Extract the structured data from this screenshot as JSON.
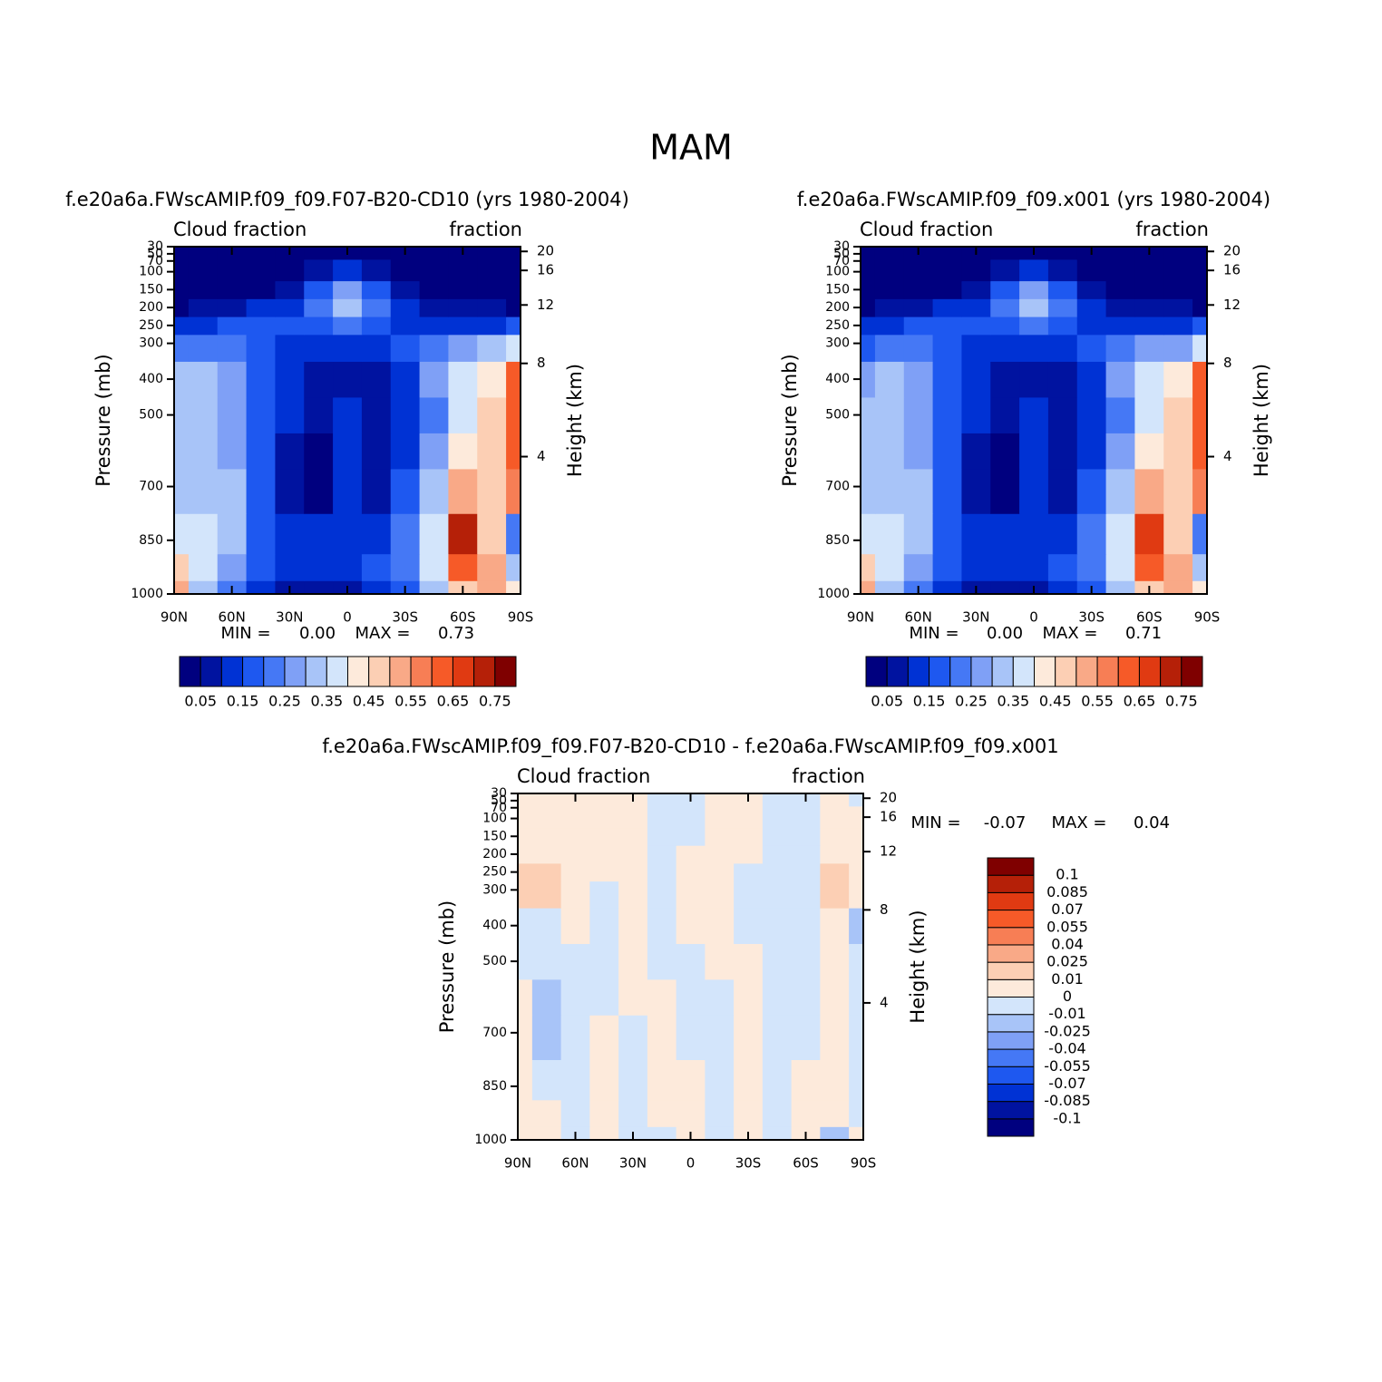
{
  "title": "MAM",
  "chart_data": [
    {
      "type": "contour",
      "title": "f.e20a6a.FWscAMIP.f09_f09.F07-B20-CD10 (yrs 1980-2004)",
      "left_label": "Cloud fraction",
      "right_label": "fraction",
      "ylabel": "Pressure (mb)",
      "y2label": "Height (km)",
      "x": [
        90,
        75,
        60,
        45,
        30,
        15,
        0,
        -15,
        -30,
        -45,
        -60,
        -75,
        -90
      ],
      "y": [
        1000,
        925,
        850,
        700,
        600,
        500,
        400,
        300,
        250,
        200,
        150,
        100,
        30
      ],
      "z": [
        [
          0.5,
          0.3,
          0.2,
          0.12,
          0.08,
          0.06,
          0.08,
          0.1,
          0.15,
          0.3,
          0.45,
          0.5,
          0.4
        ],
        [
          0.45,
          0.35,
          0.25,
          0.15,
          0.1,
          0.1,
          0.12,
          0.15,
          0.2,
          0.35,
          0.6,
          0.5,
          0.3
        ],
        [
          0.38,
          0.36,
          0.3,
          0.18,
          0.1,
          0.1,
          0.13,
          0.14,
          0.2,
          0.35,
          0.7,
          0.45,
          0.2
        ],
        [
          0.3,
          0.34,
          0.3,
          0.18,
          0.08,
          0.03,
          0.12,
          0.08,
          0.15,
          0.3,
          0.5,
          0.45,
          0.55
        ],
        [
          0.3,
          0.34,
          0.28,
          0.18,
          0.08,
          0.04,
          0.1,
          0.07,
          0.12,
          0.25,
          0.42,
          0.45,
          0.6
        ],
        [
          0.3,
          0.34,
          0.28,
          0.18,
          0.1,
          0.07,
          0.1,
          0.07,
          0.12,
          0.24,
          0.38,
          0.45,
          0.6
        ],
        [
          0.3,
          0.33,
          0.27,
          0.18,
          0.12,
          0.08,
          0.09,
          0.08,
          0.14,
          0.25,
          0.35,
          0.43,
          0.6
        ],
        [
          0.2,
          0.22,
          0.22,
          0.18,
          0.14,
          0.13,
          0.14,
          0.13,
          0.16,
          0.2,
          0.25,
          0.3,
          0.35
        ],
        [
          0.13,
          0.13,
          0.15,
          0.15,
          0.15,
          0.17,
          0.2,
          0.17,
          0.14,
          0.13,
          0.13,
          0.14,
          0.15
        ],
        [
          0.04,
          0.05,
          0.07,
          0.1,
          0.12,
          0.22,
          0.32,
          0.22,
          0.1,
          0.07,
          0.05,
          0.05,
          0.04
        ],
        [
          0.02,
          0.02,
          0.03,
          0.04,
          0.08,
          0.18,
          0.25,
          0.18,
          0.07,
          0.03,
          0.02,
          0.02,
          0.02
        ],
        [
          0.01,
          0.01,
          0.01,
          0.02,
          0.03,
          0.07,
          0.1,
          0.06,
          0.02,
          0.01,
          0.01,
          0.01,
          0.01
        ],
        [
          0.01,
          0.01,
          0.01,
          0.01,
          0.01,
          0.01,
          0.01,
          0.01,
          0.01,
          0.01,
          0.01,
          0.01,
          0.01
        ]
      ],
      "xlim": [
        90,
        -90
      ],
      "xticks": [
        {
          "value": 90,
          "label": "90N"
        },
        {
          "value": 60,
          "label": "60N"
        },
        {
          "value": 30,
          "label": "30N"
        },
        0,
        {
          "value": -30,
          "label": "30S"
        },
        {
          "value": -60,
          "label": "60S"
        },
        {
          "value": -90,
          "label": "90S"
        }
      ],
      "ylim": [
        1000,
        30
      ],
      "yticks": [
        30,
        50,
        70,
        100,
        150,
        200,
        250,
        300,
        400,
        500,
        700,
        850,
        1000
      ],
      "y2scale": "standard-atmosphere",
      "y2ticks": [
        4,
        8,
        12,
        16,
        20
      ],
      "levels": [
        0.05,
        0.1,
        0.15,
        0.2,
        0.25,
        0.3,
        0.35,
        0.4,
        0.45,
        0.5,
        0.55,
        0.6,
        0.65,
        0.7,
        0.75
      ],
      "colorbar_ticks": [
        0.05,
        0.15,
        0.25,
        0.35,
        0.45,
        0.55,
        0.65,
        0.75
      ],
      "colorbar": "horizontal",
      "colors": [
        "#00007f",
        "#0013a0",
        "#0032d4",
        "#1e58f0",
        "#4578f5",
        "#7fa0f6",
        "#a8c4f8",
        "#d3e5fb",
        "#fdeadb",
        "#fccfb4",
        "#f9a987",
        "#f77e55",
        "#f65a28",
        "#e03a12",
        "#b52008",
        "#7f0000"
      ],
      "min_label": "MIN =",
      "min": {
        "value": 0,
        "label": "0.00"
      },
      "max_label": "MAX =",
      "max": 0.73
    },
    {
      "type": "contour",
      "title": "f.e20a6a.FWscAMIP.f09_f09.x001 (yrs 1980-2004)",
      "left_label": "Cloud fraction",
      "right_label": "fraction",
      "ylabel": "Pressure (mb)",
      "y2label": "Height (km)",
      "x": [
        90,
        75,
        60,
        45,
        30,
        15,
        0,
        -15,
        -30,
        -45,
        -60,
        -75,
        -90
      ],
      "y": [
        1000,
        925,
        850,
        700,
        600,
        500,
        400,
        300,
        250,
        200,
        150,
        100,
        30
      ],
      "z": [
        [
          0.5,
          0.3,
          0.2,
          0.12,
          0.08,
          0.06,
          0.08,
          0.1,
          0.15,
          0.3,
          0.45,
          0.5,
          0.4
        ],
        [
          0.45,
          0.35,
          0.25,
          0.15,
          0.1,
          0.1,
          0.12,
          0.15,
          0.2,
          0.35,
          0.6,
          0.5,
          0.3
        ],
        [
          0.38,
          0.36,
          0.3,
          0.18,
          0.1,
          0.1,
          0.13,
          0.14,
          0.2,
          0.35,
          0.68,
          0.45,
          0.2
        ],
        [
          0.3,
          0.34,
          0.3,
          0.18,
          0.08,
          0.03,
          0.12,
          0.08,
          0.15,
          0.3,
          0.5,
          0.45,
          0.55
        ],
        [
          0.3,
          0.34,
          0.28,
          0.18,
          0.08,
          0.04,
          0.1,
          0.07,
          0.12,
          0.25,
          0.42,
          0.45,
          0.6
        ],
        [
          0.3,
          0.34,
          0.28,
          0.18,
          0.1,
          0.07,
          0.1,
          0.07,
          0.12,
          0.24,
          0.38,
          0.45,
          0.6
        ],
        [
          0.29,
          0.33,
          0.27,
          0.18,
          0.12,
          0.08,
          0.09,
          0.08,
          0.14,
          0.25,
          0.35,
          0.43,
          0.6
        ],
        [
          0.19,
          0.21,
          0.22,
          0.18,
          0.14,
          0.13,
          0.14,
          0.13,
          0.16,
          0.2,
          0.25,
          0.29,
          0.35
        ],
        [
          0.12,
          0.12,
          0.15,
          0.15,
          0.15,
          0.17,
          0.2,
          0.17,
          0.14,
          0.13,
          0.13,
          0.13,
          0.15
        ],
        [
          0.04,
          0.05,
          0.07,
          0.1,
          0.12,
          0.22,
          0.32,
          0.22,
          0.1,
          0.07,
          0.05,
          0.05,
          0.04
        ],
        [
          0.02,
          0.02,
          0.03,
          0.04,
          0.08,
          0.18,
          0.25,
          0.18,
          0.07,
          0.03,
          0.02,
          0.02,
          0.02
        ],
        [
          0.01,
          0.01,
          0.01,
          0.02,
          0.03,
          0.07,
          0.1,
          0.06,
          0.02,
          0.01,
          0.01,
          0.01,
          0.01
        ],
        [
          0.01,
          0.01,
          0.01,
          0.01,
          0.01,
          0.01,
          0.01,
          0.01,
          0.01,
          0.01,
          0.01,
          0.01,
          0.01
        ]
      ],
      "xlim": [
        90,
        -90
      ],
      "xticks": [
        {
          "value": 90,
          "label": "90N"
        },
        {
          "value": 60,
          "label": "60N"
        },
        {
          "value": 30,
          "label": "30N"
        },
        0,
        {
          "value": -30,
          "label": "30S"
        },
        {
          "value": -60,
          "label": "60S"
        },
        {
          "value": -90,
          "label": "90S"
        }
      ],
      "ylim": [
        1000,
        30
      ],
      "yticks": [
        30,
        50,
        70,
        100,
        150,
        200,
        250,
        300,
        400,
        500,
        700,
        850,
        1000
      ],
      "y2scale": "standard-atmosphere",
      "y2ticks": [
        4,
        8,
        12,
        16,
        20
      ],
      "levels": [
        0.05,
        0.1,
        0.15,
        0.2,
        0.25,
        0.3,
        0.35,
        0.4,
        0.45,
        0.5,
        0.55,
        0.6,
        0.65,
        0.7,
        0.75
      ],
      "colorbar_ticks": [
        0.05,
        0.15,
        0.25,
        0.35,
        0.45,
        0.55,
        0.65,
        0.75
      ],
      "colorbar": "horizontal",
      "colors": [
        "#00007f",
        "#0013a0",
        "#0032d4",
        "#1e58f0",
        "#4578f5",
        "#7fa0f6",
        "#a8c4f8",
        "#d3e5fb",
        "#fdeadb",
        "#fccfb4",
        "#f9a987",
        "#f77e55",
        "#f65a28",
        "#e03a12",
        "#b52008",
        "#7f0000"
      ],
      "min_label": "MIN =",
      "min": {
        "value": 0,
        "label": "0.00"
      },
      "max_label": "MAX =",
      "max": 0.71
    },
    {
      "type": "contour",
      "title": "f.e20a6a.FWscAMIP.f09_f09.F07-B20-CD10 - f.e20a6a.FWscAMIP.f09_f09.x001",
      "left_label": "Cloud fraction",
      "right_label": "fraction",
      "ylabel": "Pressure (mb)",
      "y2label": "Height (km)",
      "x": [
        90,
        75,
        60,
        45,
        30,
        15,
        0,
        -15,
        -30,
        -45,
        -60,
        -75,
        -90
      ],
      "y": [
        1000,
        925,
        850,
        700,
        600,
        500,
        400,
        300,
        250,
        200,
        150,
        100,
        30
      ],
      "z": [
        [
          0.005,
          0.005,
          -0.005,
          0.005,
          -0.005,
          -0.005,
          0.005,
          -0.005,
          0.005,
          -0.005,
          0.005,
          -0.02,
          0.005
        ],
        [
          0.005,
          0.005,
          -0.005,
          0.005,
          -0.005,
          0.005,
          0.005,
          -0.005,
          0.005,
          -0.005,
          0.005,
          0.005,
          -0.005
        ],
        [
          0.005,
          -0.005,
          -0.005,
          0.005,
          -0.005,
          0.005,
          0.005,
          -0.005,
          0.005,
          -0.005,
          0.005,
          0.005,
          -0.005
        ],
        [
          0.005,
          -0.015,
          -0.005,
          0.005,
          -0.005,
          0.005,
          -0.005,
          -0.005,
          0.005,
          -0.005,
          -0.005,
          0.005,
          -0.005
        ],
        [
          0.005,
          -0.015,
          -0.005,
          -0.005,
          0.005,
          0.005,
          -0.005,
          -0.005,
          0.005,
          -0.005,
          -0.005,
          0.005,
          -0.005
        ],
        [
          -0.005,
          -0.005,
          -0.005,
          -0.005,
          0.005,
          -0.005,
          -0.005,
          0.005,
          0.005,
          -0.005,
          -0.005,
          0.005,
          -0.005
        ],
        [
          -0.005,
          -0.005,
          0.005,
          -0.005,
          0.005,
          -0.005,
          0.005,
          0.005,
          -0.005,
          -0.005,
          -0.005,
          0.005,
          -0.015
        ],
        [
          0.015,
          0.015,
          0.005,
          -0.005,
          0.005,
          -0.005,
          0.005,
          0.005,
          -0.005,
          -0.005,
          -0.005,
          0.015,
          0.005
        ],
        [
          0.015,
          0.015,
          0.005,
          0.005,
          0.005,
          -0.005,
          0.005,
          0.005,
          -0.005,
          -0.005,
          -0.005,
          0.015,
          0.005
        ],
        [
          0.005,
          0.005,
          0.005,
          0.005,
          0.005,
          -0.005,
          0.005,
          0.005,
          0.005,
          -0.005,
          -0.005,
          0.005,
          0.005
        ],
        [
          0.005,
          0.005,
          0.005,
          0.005,
          0.005,
          -0.005,
          -0.005,
          0.005,
          0.005,
          -0.005,
          -0.005,
          0.005,
          0.005
        ],
        [
          0.005,
          0.005,
          0.005,
          0.005,
          0.005,
          -0.005,
          -0.005,
          0.005,
          0.005,
          -0.005,
          -0.005,
          0.005,
          0.005
        ],
        [
          0.005,
          0.005,
          0.005,
          0.005,
          0.005,
          -0.005,
          -0.005,
          0.005,
          0.005,
          -0.005,
          -0.005,
          0.005,
          -0.005
        ]
      ],
      "xlim": [
        90,
        -90
      ],
      "xticks": [
        {
          "value": 90,
          "label": "90N"
        },
        {
          "value": 60,
          "label": "60N"
        },
        {
          "value": 30,
          "label": "30N"
        },
        0,
        {
          "value": -30,
          "label": "30S"
        },
        {
          "value": -60,
          "label": "60S"
        },
        {
          "value": -90,
          "label": "90S"
        }
      ],
      "ylim": [
        1000,
        30
      ],
      "yticks": [
        30,
        50,
        70,
        100,
        150,
        200,
        250,
        300,
        400,
        500,
        700,
        850,
        1000
      ],
      "y2scale": "standard-atmosphere",
      "y2ticks": [
        4,
        8,
        12,
        16,
        20
      ],
      "levels": [
        -0.1,
        -0.085,
        -0.07,
        -0.055,
        -0.04,
        -0.025,
        -0.01,
        0,
        0.01,
        0.025,
        0.04,
        0.055,
        0.07,
        0.085,
        0.1
      ],
      "colorbar": "vertical",
      "colors": [
        "#00007f",
        "#0013a0",
        "#0032d4",
        "#1e58f0",
        "#4578f5",
        "#7fa0f6",
        "#a8c4f8",
        "#d3e5fb",
        "#fdeadb",
        "#fccfb4",
        "#f9a987",
        "#f77e55",
        "#f65a28",
        "#e03a12",
        "#b52008",
        "#7f0000"
      ],
      "min_label": "MIN =",
      "min": -0.07,
      "max_label": "MAX =",
      "max": 0.04
    }
  ]
}
